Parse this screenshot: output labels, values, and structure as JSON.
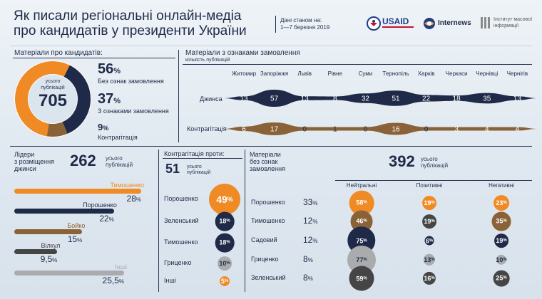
{
  "header": {
    "title_line1": "Як писали регіональні онлайн-медіа",
    "title_line2": "про кандидатів у президенти України",
    "date_label": "Дані станом на:",
    "date_value": "1—7 березня 2019",
    "logo_usaid": "USAID",
    "logo_internews": "Internews",
    "logo_imi_line1": "Інститут масової",
    "logo_imi_line2": "інформації"
  },
  "colors": {
    "orange": "#f08a24",
    "navy": "#1f2a48",
    "brown": "#8a6238",
    "gray": "#a9abad",
    "darkgray": "#454545"
  },
  "summary": {
    "title": "Матеріали про кандидатів:",
    "total_caption_1": "усього",
    "total_caption_2": "публікацій",
    "total": "705",
    "items": [
      {
        "pct": "56",
        "label": "Без ознак замовлення"
      },
      {
        "pct": "37",
        "label": "З ознаками замовлення"
      },
      {
        "pct": "9",
        "label": "Контрагітація"
      }
    ]
  },
  "regions_chart": {
    "title": "Матеріали з ознаками замовлення",
    "subtitle": "кількість публікацій",
    "row1_label": "Джинса",
    "row2_label": "Контрагітація"
  },
  "leaders": {
    "title_line1": "Лідери",
    "title_line2": "з розміщення",
    "title_line3": "джинси",
    "total": "262",
    "caption_1": "усього",
    "caption_2": "публікацій"
  },
  "counter": {
    "title": "Контрагітація проти:",
    "total": "51",
    "caption_1": "усього",
    "caption_2": "публікацій"
  },
  "neutral": {
    "title_line1": "Матеріали",
    "title_line2": "без ознак",
    "title_line3": "замовлення",
    "total": "392",
    "caption_1": "усього",
    "caption_2": "публікацій",
    "col_neutral": "Нейтральні",
    "col_positive": "Позитивні",
    "col_negative": "Негативні"
  },
  "chart_data": [
    {
      "type": "bar",
      "title": "Матеріали з ознаками замовлення",
      "subtitle": "кількість публікацій",
      "categories": [
        "Житомир",
        "Запоріжжя",
        "Львів",
        "Рівне",
        "Суми",
        "Тернопіль",
        "Харків",
        "Черкаси",
        "Чернівці",
        "Чернігів"
      ],
      "series": [
        {
          "name": "Джинса",
          "values": [
            13,
            57,
            13,
            8,
            32,
            51,
            22,
            18,
            35,
            13
          ]
        },
        {
          "name": "Контрагітація",
          "values": [
            6,
            17,
            0,
            1,
            0,
            16,
            0,
            3,
            4,
            4
          ]
        }
      ]
    },
    {
      "type": "pie",
      "title": "Матеріали про кандидатів",
      "total": 705,
      "categories": [
        "Без ознак замовлення",
        "З ознаками замовлення",
        "Контрагітація"
      ],
      "values": [
        56,
        37,
        9
      ]
    },
    {
      "type": "bar",
      "title": "Лідери з розміщення джинси",
      "total": 262,
      "categories": [
        "Тимошенко",
        "Порошенко",
        "Бойко",
        "Вілкул",
        "Інші"
      ],
      "values": [
        28,
        22,
        15,
        9.5,
        25.5
      ],
      "value_labels": [
        "28",
        "22",
        "15",
        "9,5",
        "25,5"
      ]
    },
    {
      "type": "scatter",
      "title": "Контрагітація проти:",
      "total": 51,
      "categories": [
        "Порошенко",
        "Зеленський",
        "Тимошенко",
        "Гриценко",
        "Інші"
      ],
      "values": [
        49,
        18,
        18,
        10,
        5
      ]
    },
    {
      "type": "table",
      "title": "Матеріали без ознак замовлення",
      "total": 392,
      "columns": [
        "Нейтральні",
        "Позитивні",
        "Негативні"
      ],
      "rows": [
        {
          "name": "Порошенко",
          "share": 33,
          "values": [
            58,
            19,
            23
          ]
        },
        {
          "name": "Тимошенко",
          "share": 12,
          "values": [
            46,
            19,
            35
          ]
        },
        {
          "name": "Садовий",
          "share": 12,
          "values": [
            75,
            6,
            19
          ]
        },
        {
          "name": "Гриценко",
          "share": 8,
          "values": [
            77,
            13,
            10
          ]
        },
        {
          "name": "Зеленський",
          "share": 8,
          "values": [
            59,
            16,
            25
          ]
        }
      ]
    }
  ]
}
